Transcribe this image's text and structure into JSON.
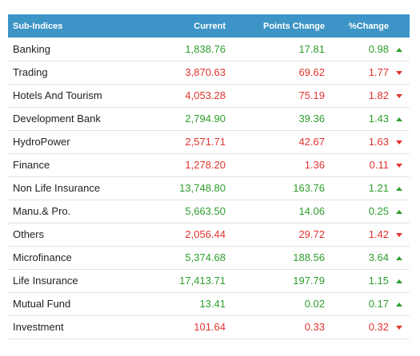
{
  "table": {
    "headers": {
      "name": "Sub-Indices",
      "current": "Current",
      "points_change": "Points Change",
      "pct_change": "%Change"
    },
    "colors": {
      "header_bg": "#3d95c7",
      "up": "#2e9e2e",
      "down": "#e0342f"
    },
    "rows": [
      {
        "name": "Banking",
        "current": "1,838.76",
        "points": "17.81",
        "pct": "0.98",
        "trend": "up"
      },
      {
        "name": "Trading",
        "current": "3,870.63",
        "points": "69.62",
        "pct": "1.77",
        "trend": "down"
      },
      {
        "name": "Hotels And Tourism",
        "current": "4,053.28",
        "points": "75.19",
        "pct": "1.82",
        "trend": "down"
      },
      {
        "name": "Development Bank",
        "current": "2,794.90",
        "points": "39.36",
        "pct": "1.43",
        "trend": "up"
      },
      {
        "name": "HydroPower",
        "current": "2,571.71",
        "points": "42.67",
        "pct": "1.63",
        "trend": "down"
      },
      {
        "name": "Finance",
        "current": "1,278.20",
        "points": "1.36",
        "pct": "0.11",
        "trend": "down"
      },
      {
        "name": "Non Life Insurance",
        "current": "13,748.80",
        "points": "163.76",
        "pct": "1.21",
        "trend": "up"
      },
      {
        "name": "Manu.& Pro.",
        "current": "5,663.50",
        "points": "14.06",
        "pct": "0.25",
        "trend": "up"
      },
      {
        "name": "Others",
        "current": "2,056.44",
        "points": "29.72",
        "pct": "1.42",
        "trend": "down"
      },
      {
        "name": "Microfinance",
        "current": "5,374.68",
        "points": "188.56",
        "pct": "3.64",
        "trend": "up"
      },
      {
        "name": "Life Insurance",
        "current": "17,413.71",
        "points": "197.79",
        "pct": "1.15",
        "trend": "up"
      },
      {
        "name": "Mutual Fund",
        "current": "13.41",
        "points": "0.02",
        "pct": "0.17",
        "trend": "up"
      },
      {
        "name": "Investment",
        "current": "101.64",
        "points": "0.33",
        "pct": "0.32",
        "trend": "down"
      }
    ]
  }
}
